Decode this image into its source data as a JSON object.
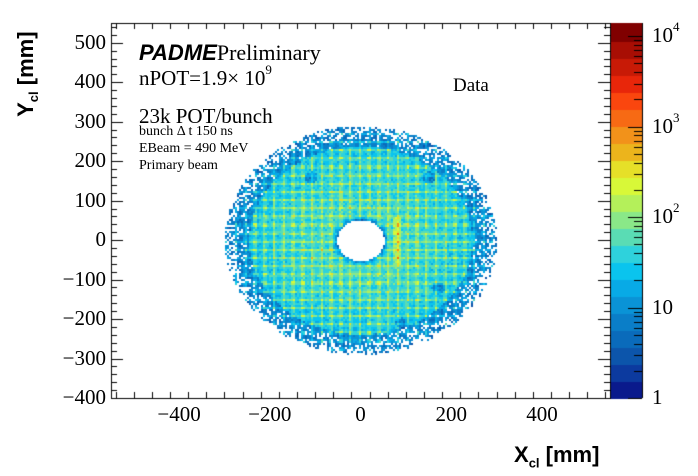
{
  "chart_data": {
    "type": "heatmap",
    "title": "",
    "xlabel": "X",
    "xlabel_sub": "cl",
    "xlabel_unit": "[mm]",
    "ylabel": "Y",
    "ylabel_sub": "cl",
    "ylabel_unit": "[mm]",
    "xlim": [
      -550,
      550
    ],
    "ylim": [
      -400,
      550
    ],
    "xticks": [
      -400,
      -200,
      0,
      200,
      400
    ],
    "xtick_labels": [
      "−400",
      "−200",
      "0",
      "200",
      "400"
    ],
    "yticks": [
      -400,
      -300,
      -200,
      -100,
      0,
      100,
      200,
      300,
      400,
      500
    ],
    "ytick_labels": [
      "−400",
      "−300",
      "−200",
      "−100",
      "0",
      "100",
      "200",
      "300",
      "400",
      "500"
    ],
    "z_scale": "log",
    "zlim": [
      1,
      14000
    ],
    "zticks": [
      1,
      10,
      100,
      1000,
      10000
    ],
    "ztick_labels": [
      "1",
      "10",
      "10",
      "10",
      "10"
    ],
    "ztick_exponents": [
      "",
      "",
      "2",
      "3",
      "4"
    ],
    "palette": [
      "#0a1a8c",
      "#0c3a9f",
      "#0c55ab",
      "#0a6bbb",
      "#0a7ec8",
      "#0a93d6",
      "#08aae6",
      "#0ac4ee",
      "#2ed2dc",
      "#5adcb4",
      "#8ae888",
      "#b4f05a",
      "#d8f838",
      "#e6e028",
      "#ecb41c",
      "#f2921a",
      "#f76a14",
      "#fa460e",
      "#e8260a",
      "#c81a06",
      "#a80e04",
      "#800000"
    ],
    "distribution": {
      "detector_shape": "ellipse",
      "detector_center": [
        0,
        0
      ],
      "detector_semi_axes": [
        300,
        290
      ],
      "central_hole_center": [
        0,
        0
      ],
      "central_hole_radius": 55,
      "crystal_pitch": 21,
      "typical_counts": 60,
      "hotspot_counts": 500,
      "hotspot_x": 80
    },
    "annotations": {
      "experiment": "PADME",
      "status": "Preliminary",
      "npot_prefix": "nPOT=1.9× 10",
      "npot_exp": "9",
      "pot_per_bunch": "23k POT/bunch",
      "bunch_dt": "bunch Δ t 150 ns",
      "ebeam": "EBeam = 490 MeV",
      "beam_type": "Primary beam",
      "dataset": "Data"
    }
  }
}
